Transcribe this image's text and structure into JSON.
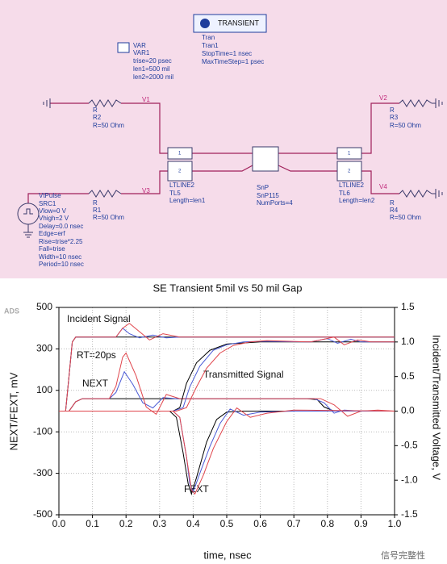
{
  "schematic": {
    "transient": {
      "button": "TRANSIENT",
      "lines": [
        "Tran",
        "Tran1",
        "StopTime=1 nsec",
        "MaxTimeStep=1 psec"
      ]
    },
    "var": {
      "icon": "VAR",
      "lines": [
        "VAR1",
        "trise=20 psec",
        "len1=500 mil",
        "len2=2000 mil"
      ]
    },
    "r2": [
      "R",
      "R2",
      "R=50 Ohm"
    ],
    "r1": [
      "R",
      "R1",
      "R=50 Ohm"
    ],
    "r3": [
      "R",
      "R3",
      "R=50 Ohm"
    ],
    "r4": [
      "R",
      "R4",
      "R=50 Ohm"
    ],
    "src": [
      "VtPulse",
      "SRC1",
      "Vlow=0 V",
      "Vhigh=2 V",
      "Delay=0.0 nsec",
      "Edge=erf",
      "Rise=trise*2.25",
      "Fall=trise",
      "Width=10 nsec",
      "Period=10 nsec"
    ],
    "tl5": {
      "lines": [
        "LTLINE2",
        "TL5",
        "Length=len1"
      ],
      "ports": [
        "1",
        "2"
      ]
    },
    "tl6": {
      "lines": [
        "LTLINE2",
        "TL6",
        "Length=len2"
      ],
      "ports": [
        "1",
        "2"
      ]
    },
    "snp": [
      "SnP",
      "SnP115",
      "NumPorts=4"
    ],
    "nodes": [
      "V1",
      "V3",
      "V2",
      "V4"
    ]
  },
  "chart_data": {
    "type": "line",
    "title": "SE Transient 5mil vs 50 mil Gap",
    "x_label": "time, nsec",
    "y_label": "NEXT/FEXT, mV",
    "y2_label": "Incident/Transmitted Voltage, V",
    "annotations": [
      "ADS",
      "Incident Signal",
      "RT=20ps",
      "Transmitted Signal",
      "NEXT",
      "FEXT"
    ],
    "watermark": "信号完整性",
    "grid": true,
    "xlim": [
      0,
      1
    ],
    "xticks": [
      {
        "value": 0,
        "label": "0.0"
      },
      0.1,
      0.2,
      0.3,
      0.4,
      0.5,
      0.6,
      0.7,
      0.8,
      0.9,
      {
        "value": 1,
        "label": "1.0"
      }
    ],
    "ylim": [
      -500,
      500
    ],
    "yticks": [
      -500,
      -300,
      -100,
      100,
      300,
      500
    ],
    "y2lim": [
      -1.5,
      1.5
    ],
    "y2ticks": [
      -1.5,
      {
        "value": -1,
        "label": "-1.0"
      },
      -0.5,
      {
        "value": 0,
        "label": "0.0"
      },
      0.5,
      {
        "value": 1,
        "label": "1.0"
      },
      1.5
    ],
    "series": [
      {
        "color": "#000000",
        "x": [
          0,
          0.03,
          0.05,
          0.07,
          0.74,
          0.77,
          0.79,
          0.82,
          1.0
        ],
        "values": [
          0,
          0,
          45,
          60,
          60,
          55,
          20,
          0,
          0
        ]
      },
      {
        "color": "#4b5bd6",
        "x": [
          0,
          0.03,
          0.05,
          0.07,
          0.15,
          0.17,
          0.195,
          0.22,
          0.25,
          0.28,
          0.31,
          0.35,
          0.5,
          0.76,
          0.79,
          0.82,
          0.85,
          0.9,
          1.0
        ],
        "values": [
          0,
          0,
          45,
          60,
          60,
          90,
          190,
          130,
          40,
          15,
          65,
          60,
          60,
          60,
          40,
          -10,
          5,
          0,
          0
        ]
      },
      {
        "color": "#e0454c",
        "x": [
          0,
          0.03,
          0.05,
          0.07,
          0.15,
          0.17,
          0.19,
          0.2,
          0.23,
          0.26,
          0.29,
          0.32,
          0.36,
          0.5,
          0.78,
          0.82,
          0.86,
          0.9,
          0.95,
          1.0
        ],
        "values": [
          0,
          0,
          45,
          60,
          60,
          120,
          260,
          280,
          170,
          20,
          -15,
          80,
          60,
          60,
          60,
          30,
          -25,
          0,
          5,
          0
        ]
      },
      {
        "color": "#000000",
        "x": [
          0,
          0.33,
          0.35,
          0.37,
          0.385,
          0.395,
          0.41,
          0.44,
          0.47,
          0.5,
          0.55,
          1.0
        ],
        "values": [
          0,
          0,
          -30,
          -200,
          -350,
          -400,
          -320,
          -150,
          -40,
          -5,
          0,
          0
        ]
      },
      {
        "color": "#4b5bd6",
        "x": [
          0,
          0.34,
          0.36,
          0.38,
          0.39,
          0.4,
          0.42,
          0.45,
          0.48,
          0.51,
          0.55,
          0.6,
          0.7,
          1.0
        ],
        "values": [
          0,
          0,
          -30,
          -220,
          -350,
          -390,
          -300,
          -170,
          -60,
          10,
          -20,
          -5,
          0,
          0
        ]
      },
      {
        "color": "#e0454c",
        "x": [
          0,
          0.34,
          0.36,
          0.38,
          0.395,
          0.405,
          0.43,
          0.46,
          0.5,
          0.53,
          0.57,
          0.62,
          0.7,
          1.0
        ],
        "values": [
          0,
          0,
          -30,
          -220,
          -380,
          -400,
          -310,
          -180,
          -50,
          15,
          -30,
          -10,
          5,
          0
        ]
      },
      {
        "color": "#000000",
        "axis": "y2",
        "x": [
          0,
          0.02,
          0.03,
          0.04,
          0.05,
          1.0
        ],
        "values": [
          0,
          0,
          0.5,
          1.0,
          1.07,
          1.07
        ]
      },
      {
        "color": "#4b5bd6",
        "axis": "y2",
        "x": [
          0,
          0.02,
          0.03,
          0.04,
          0.05,
          0.17,
          0.19,
          0.21,
          0.24,
          0.28,
          0.32,
          0.36,
          1.0
        ],
        "values": [
          0,
          0,
          0.5,
          1.0,
          1.07,
          1.07,
          1.2,
          1.12,
          1.06,
          1.1,
          1.06,
          1.07,
          1.07
        ]
      },
      {
        "color": "#e0454c",
        "axis": "y2",
        "x": [
          0,
          0.02,
          0.03,
          0.04,
          0.05,
          0.17,
          0.19,
          0.21,
          0.24,
          0.27,
          0.31,
          0.36,
          1.0
        ],
        "values": [
          0,
          0,
          0.5,
          1.0,
          1.07,
          1.07,
          1.2,
          1.27,
          1.15,
          1.03,
          1.12,
          1.07,
          1.07
        ]
      },
      {
        "color": "#000000",
        "axis": "y2",
        "x": [
          0,
          0.34,
          0.36,
          0.38,
          0.41,
          0.45,
          0.5,
          0.6,
          0.8,
          1.0
        ],
        "values": [
          0,
          0,
          0.05,
          0.4,
          0.7,
          0.88,
          0.97,
          1.0,
          1.0,
          1.0
        ]
      },
      {
        "color": "#4b5bd6",
        "axis": "y2",
        "x": [
          0,
          0.34,
          0.37,
          0.39,
          0.42,
          0.46,
          0.5,
          0.55,
          0.6,
          0.75,
          0.8,
          0.83,
          0.87,
          0.9,
          1.0
        ],
        "values": [
          0,
          0,
          0.05,
          0.35,
          0.65,
          0.88,
          0.96,
          1.0,
          1.01,
          1.0,
          1.05,
          0.98,
          1.04,
          1.0,
          1.0
        ]
      },
      {
        "color": "#e0454c",
        "axis": "y2",
        "x": [
          0,
          0.35,
          0.38,
          0.41,
          0.44,
          0.48,
          0.52,
          0.57,
          0.62,
          0.75,
          0.82,
          0.85,
          0.89,
          0.93,
          1.0
        ],
        "values": [
          0,
          0,
          0.05,
          0.35,
          0.62,
          0.84,
          0.95,
          1.0,
          1.02,
          1.0,
          1.07,
          0.96,
          1.03,
          1.0,
          1.0
        ]
      }
    ]
  }
}
